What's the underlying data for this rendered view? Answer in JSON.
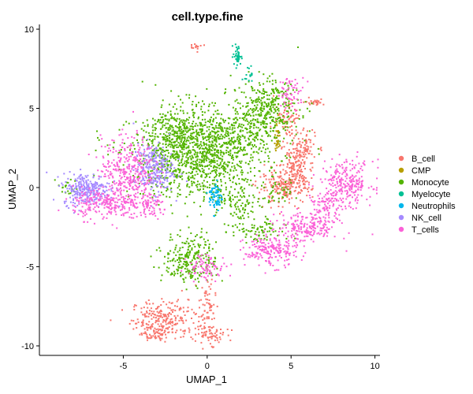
{
  "chart_data": {
    "type": "scatter",
    "title": "cell.type.fine",
    "xlabel": "UMAP_1",
    "ylabel": "UMAP_2",
    "xlim": [
      -10,
      10.3
    ],
    "ylim": [
      -10.6,
      10.3
    ],
    "xticks": [
      -5,
      0,
      5,
      10
    ],
    "yticks": [
      -10,
      -5,
      0,
      5,
      10
    ],
    "grid": false,
    "legend_position": "right",
    "series": [
      {
        "name": "B_cell",
        "color": "#F8766D",
        "clusters": [
          {
            "cx": -2.5,
            "cy": -8.3,
            "sx": 1.0,
            "sy": 0.6,
            "weight": 240
          },
          {
            "cx": 0.0,
            "cy": -7.8,
            "sx": 0.25,
            "sy": 1.0,
            "weight": 70
          },
          {
            "cx": -3.2,
            "cy": -9.2,
            "sx": 0.5,
            "sy": 0.3,
            "weight": 60
          },
          {
            "cx": 0.3,
            "cy": -9.3,
            "sx": 0.4,
            "sy": 0.3,
            "weight": 50
          },
          {
            "cx": 5.5,
            "cy": 2.3,
            "sx": 0.5,
            "sy": 0.7,
            "weight": 140
          },
          {
            "cx": 4.6,
            "cy": 0.0,
            "sx": 0.8,
            "sy": 0.5,
            "weight": 200
          },
          {
            "cx": 5.3,
            "cy": 1.0,
            "sx": 0.4,
            "sy": 0.5,
            "weight": 80
          },
          {
            "cx": 4.8,
            "cy": 4.5,
            "sx": 0.4,
            "sy": 0.6,
            "weight": 60
          },
          {
            "cx": 6.4,
            "cy": 5.4,
            "sx": 0.3,
            "sy": 0.1,
            "weight": 25
          },
          {
            "cx": -0.6,
            "cy": 8.9,
            "sx": 0.2,
            "sy": 0.1,
            "weight": 15
          }
        ]
      },
      {
        "name": "CMP",
        "color": "#B79F00",
        "clusters": [
          {
            "cx": 4.2,
            "cy": 3.2,
            "sx": 0.08,
            "sy": 0.5,
            "weight": 40
          }
        ]
      },
      {
        "name": "Monocyte",
        "color": "#53B400",
        "clusters": [
          {
            "cx": -0.5,
            "cy": 2.0,
            "sx": 2.0,
            "sy": 1.3,
            "weight": 1100
          },
          {
            "cx": -1.5,
            "cy": 3.5,
            "sx": 1.0,
            "sy": 1.0,
            "weight": 250
          },
          {
            "cx": 3.5,
            "cy": 5.0,
            "sx": 1.0,
            "sy": 0.9,
            "weight": 350
          },
          {
            "cx": 1.8,
            "cy": 3.5,
            "sx": 1.0,
            "sy": 0.6,
            "weight": 150
          },
          {
            "cx": -1.0,
            "cy": -4.5,
            "sx": 0.8,
            "sy": 0.8,
            "weight": 260
          },
          {
            "cx": 1.8,
            "cy": -1.2,
            "sx": 0.6,
            "sy": 0.6,
            "weight": 90
          },
          {
            "cx": 3.0,
            "cy": -2.8,
            "sx": 0.8,
            "sy": 0.4,
            "weight": 80
          },
          {
            "cx": 4.0,
            "cy": -0.5,
            "sx": 0.5,
            "sy": 0.4,
            "weight": 40
          },
          {
            "cx": -8.3,
            "cy": 0.0,
            "sx": 0.3,
            "sy": 0.3,
            "weight": 20
          }
        ]
      },
      {
        "name": "Myelocyte",
        "color": "#00C094",
        "clusters": [
          {
            "cx": 1.8,
            "cy": 8.3,
            "sx": 0.12,
            "sy": 0.35,
            "weight": 45
          },
          {
            "cx": 2.5,
            "cy": 7.2,
            "sx": 0.12,
            "sy": 0.25,
            "weight": 15
          }
        ]
      },
      {
        "name": "Neutrophils",
        "color": "#00B6EB",
        "clusters": [
          {
            "cx": 0.5,
            "cy": -0.6,
            "sx": 0.2,
            "sy": 0.5,
            "weight": 70
          }
        ]
      },
      {
        "name": "NK_cell",
        "color": "#A58AFF",
        "clusters": [
          {
            "cx": -7.2,
            "cy": -0.1,
            "sx": 0.7,
            "sy": 0.5,
            "weight": 280
          },
          {
            "cx": -3.2,
            "cy": 1.2,
            "sx": 0.6,
            "sy": 0.8,
            "weight": 250
          }
        ]
      },
      {
        "name": "T_cells",
        "color": "#FB61D7",
        "clusters": [
          {
            "cx": -4.7,
            "cy": 1.2,
            "sx": 0.8,
            "sy": 1.0,
            "weight": 330
          },
          {
            "cx": -6.0,
            "cy": -1.0,
            "sx": 1.0,
            "sy": 0.5,
            "weight": 240
          },
          {
            "cx": -3.5,
            "cy": -1.2,
            "sx": 0.6,
            "sy": 0.4,
            "weight": 90
          },
          {
            "cx": 8.3,
            "cy": 0.3,
            "sx": 0.8,
            "sy": 0.7,
            "weight": 260
          },
          {
            "cx": 6.0,
            "cy": -2.5,
            "sx": 0.9,
            "sy": 0.5,
            "weight": 200
          },
          {
            "cx": 3.8,
            "cy": -4.0,
            "sx": 0.8,
            "sy": 0.5,
            "weight": 200
          },
          {
            "cx": 7.2,
            "cy": -1.2,
            "sx": 0.5,
            "sy": 0.4,
            "weight": 80
          },
          {
            "cx": 0.0,
            "cy": -5.0,
            "sx": 0.6,
            "sy": 0.4,
            "weight": 80
          },
          {
            "cx": 5.0,
            "cy": 6.0,
            "sx": 0.4,
            "sy": 0.5,
            "weight": 60
          }
        ]
      }
    ]
  }
}
